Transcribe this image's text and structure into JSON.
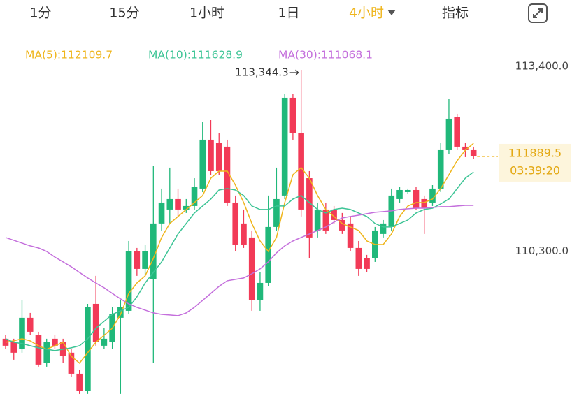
{
  "tabs": [
    "1分",
    "15分",
    "1小时",
    "1日",
    "4小时",
    "指标"
  ],
  "chart_data": {
    "type": "candlestick",
    "up_color": "#20b87a",
    "down_color": "#f23a57",
    "ylim": [
      107900,
      114517
    ],
    "yticks": [
      {
        "value": 113400,
        "label": "113,400.0"
      },
      {
        "value": 110300,
        "label": "110,300.0"
      }
    ],
    "high_annotation": "113,344.3",
    "last_price": 111889.5,
    "countdown": "03:39:20",
    "candles": [
      [
        108828,
        108887,
        108652,
        108711
      ],
      [
        108769,
        108828,
        108476,
        108594
      ],
      [
        108652,
        109473,
        108594,
        109180
      ],
      [
        109180,
        109262,
        108887,
        108945
      ],
      [
        108887,
        108945,
        108359,
        108394
      ],
      [
        108418,
        108828,
        108359,
        108769
      ],
      [
        108828,
        108887,
        108652,
        108711
      ],
      [
        108769,
        108828,
        108418,
        108535
      ],
      [
        108594,
        108652,
        108182,
        108241
      ],
      [
        108241,
        108300,
        107901,
        107948
      ],
      [
        107948,
        109414,
        107901,
        109356
      ],
      [
        109414,
        109884,
        108711,
        108769
      ],
      [
        108711,
        109004,
        108652,
        108828
      ],
      [
        108769,
        109356,
        108652,
        109238
      ],
      [
        109180,
        109473,
        107901,
        109356
      ],
      [
        109297,
        110470,
        109238,
        110294
      ],
      [
        110294,
        110353,
        109884,
        110001
      ],
      [
        110001,
        110411,
        109884,
        110294
      ],
      [
        109825,
        111725,
        108418,
        110764
      ],
      [
        110764,
        111350,
        110646,
        111115
      ],
      [
        110998,
        111702,
        110764,
        111174
      ],
      [
        111174,
        111350,
        110881,
        110998
      ],
      [
        110998,
        111174,
        110940,
        111057
      ],
      [
        111057,
        111525,
        110998,
        111373
      ],
      [
        111350,
        112464,
        111291,
        112171
      ],
      [
        112171,
        112499,
        111584,
        111643
      ],
      [
        112112,
        112288,
        111584,
        111643
      ],
      [
        112054,
        112171,
        111057,
        111115
      ],
      [
        111115,
        111233,
        110294,
        110411
      ],
      [
        110764,
        110998,
        110353,
        110411
      ],
      [
        110529,
        110646,
        109297,
        109473
      ],
      [
        109473,
        109942,
        109297,
        109766
      ],
      [
        109766,
        111233,
        109708,
        110705
      ],
      [
        110705,
        111702,
        110646,
        111174
      ],
      [
        111233,
        112934,
        111174,
        112875
      ],
      [
        112875,
        112934,
        112171,
        112288
      ],
      [
        112288,
        113344.3,
        110881,
        110998
      ],
      [
        111525,
        111643,
        110177,
        110529
      ],
      [
        110646,
        111115,
        110529,
        110998
      ],
      [
        110998,
        111115,
        110588,
        110646
      ],
      [
        110998,
        111057,
        110764,
        110822
      ],
      [
        110822,
        110940,
        110588,
        110646
      ],
      [
        110764,
        110881,
        110294,
        110353
      ],
      [
        110353,
        110470,
        109884,
        110001
      ],
      [
        110177,
        110236,
        109942,
        110001
      ],
      [
        110177,
        110705,
        110118,
        110646
      ],
      [
        110588,
        110822,
        110529,
        110764
      ],
      [
        110705,
        111350,
        110646,
        111233
      ],
      [
        111174,
        111373,
        111115,
        111326
      ],
      [
        111291,
        111350,
        111256,
        111326
      ],
      [
        111326,
        111373,
        110998,
        111021
      ],
      [
        111174,
        111233,
        110588,
        111021
      ],
      [
        111115,
        111408,
        111057,
        111350
      ],
      [
        111350,
        112112,
        111291,
        111995
      ],
      [
        111995,
        112851,
        111936,
        112523
      ],
      [
        112546,
        112605,
        111995,
        112054
      ],
      [
        112054,
        112112,
        111878,
        111995
      ],
      [
        111995,
        112054,
        111843,
        111889.5
      ]
    ],
    "series": [
      {
        "name": "MA(5):112109.7",
        "color": "#efb51c",
        "values": [
          108769,
          108793,
          108828,
          108793,
          108711,
          108652,
          108711,
          108769,
          108535,
          108418,
          108594,
          108769,
          108887,
          109004,
          109238,
          109590,
          109766,
          109884,
          110177,
          110529,
          110764,
          110881,
          110998,
          111115,
          111233,
          111525,
          111643,
          111643,
          111408,
          111115,
          110764,
          110470,
          110294,
          110529,
          111115,
          111584,
          111702,
          111525,
          111233,
          110998,
          110881,
          110764,
          110705,
          110646,
          110470,
          110411,
          110411,
          110588,
          110881,
          111057,
          111115,
          111115,
          111174,
          111350,
          111584,
          111819,
          111995,
          112110
        ]
      },
      {
        "name": "MA(10):111628.9",
        "color": "#3cc495",
        "values": [
          108828,
          108769,
          108746,
          108711,
          108675,
          108652,
          108628,
          108652,
          108675,
          108711,
          108828,
          109004,
          109121,
          109238,
          109297,
          109356,
          109532,
          109766,
          109942,
          110118,
          110353,
          110588,
          110764,
          110940,
          111057,
          111174,
          111326,
          111350,
          111326,
          111233,
          111057,
          110998,
          110998,
          111057,
          111057,
          111174,
          111233,
          111115,
          110998,
          110940,
          110998,
          111021,
          110998,
          110940,
          110881,
          110764,
          110705,
          110705,
          110764,
          110822,
          110940,
          110998,
          111021,
          111092,
          111174,
          111350,
          111525,
          111629
        ]
      },
      {
        "name": "MA(30):111068.1",
        "color": "#c46fdc",
        "values": [
          110529,
          110482,
          110435,
          110388,
          110353,
          110294,
          110200,
          110118,
          110036,
          109942,
          109849,
          109766,
          109684,
          109590,
          109497,
          109414,
          109356,
          109309,
          109262,
          109238,
          109227,
          109215,
          109262,
          109356,
          109473,
          109590,
          109708,
          109802,
          109825,
          109849,
          109919,
          110001,
          110118,
          110271,
          110388,
          110470,
          110529,
          110588,
          110646,
          110705,
          110787,
          110857,
          110881,
          110904,
          110928,
          110952,
          110963,
          110975,
          110998,
          111010,
          111021,
          111021,
          111033,
          111045,
          111045,
          111057,
          111068,
          111068
        ]
      }
    ]
  }
}
